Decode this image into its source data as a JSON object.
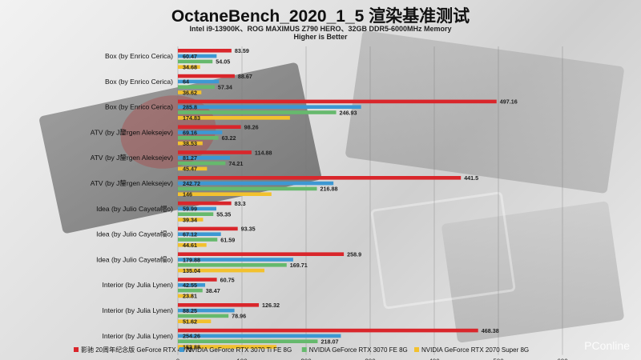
{
  "title": "OctaneBench_2020_1_5 渲染基准测试",
  "subtitles": [
    "Intel i9-13900K、ROG MAXIMUS Z790 HERO、32GB DDR5-6000MHz Memory",
    "Higher is Better"
  ],
  "watermark": "PConline",
  "chart_data": {
    "type": "bar",
    "orientation": "horizontal",
    "categories": [
      "Box (by Enrico Cerica)",
      "Box (by Enrico Cerica)",
      "Box (by Enrico Cerica)",
      "ATV (by J釐rgen Aleksejev)",
      "ATV (by J釐rgen Aleksejev)",
      "ATV (by J釐rgen Aleksejev)",
      "Idea (by Julio Cayeta帽o)",
      "Idea (by Julio Cayeta帽o)",
      "Idea (by Julio Cayeta帽o)",
      "Interior (by Julia Lynen)",
      "Interior (by Julia Lynen)",
      "Interior (by Julia Lynen)"
    ],
    "series": [
      {
        "name": "影驰 20周年纪念版 GeForce RTX 4070",
        "color": "#d9262b",
        "values": [
          83.59,
          88.67,
          497.16,
          98.26,
          114.88,
          441.5,
          83.3,
          93.35,
          258.9,
          60.75,
          126.32,
          468.38
        ]
      },
      {
        "name": "NVIDIA GeForce RTX 3070 Ti FE 8G",
        "color": "#3d98d3",
        "values": [
          60.47,
          64,
          285.8,
          69.16,
          81.27,
          242.72,
          59.99,
          67.12,
          179.88,
          42.55,
          88.25,
          254.26
        ]
      },
      {
        "name": "NVIDIA GeForce RTX 3070 FE 8G",
        "color": "#66b96d",
        "values": [
          54.05,
          57.34,
          246.93,
          63.22,
          74.21,
          216.88,
          55.35,
          61.59,
          169.71,
          38.47,
          78.96,
          218.07
        ]
      },
      {
        "name": "NVIDIA GeForce RTX 2070 Super 8G",
        "color": "#f2c12e",
        "values": [
          34.68,
          36.62,
          174.83,
          38.53,
          45.47,
          146,
          39.34,
          44.61,
          135.04,
          23.81,
          51.62,
          153.88
        ]
      }
    ],
    "xlim": [
      0,
      600
    ],
    "xticks": [
      "0",
      "100",
      "200",
      "300",
      "400",
      "500",
      "600"
    ],
    "grid": true,
    "legend_position": "bottom"
  }
}
